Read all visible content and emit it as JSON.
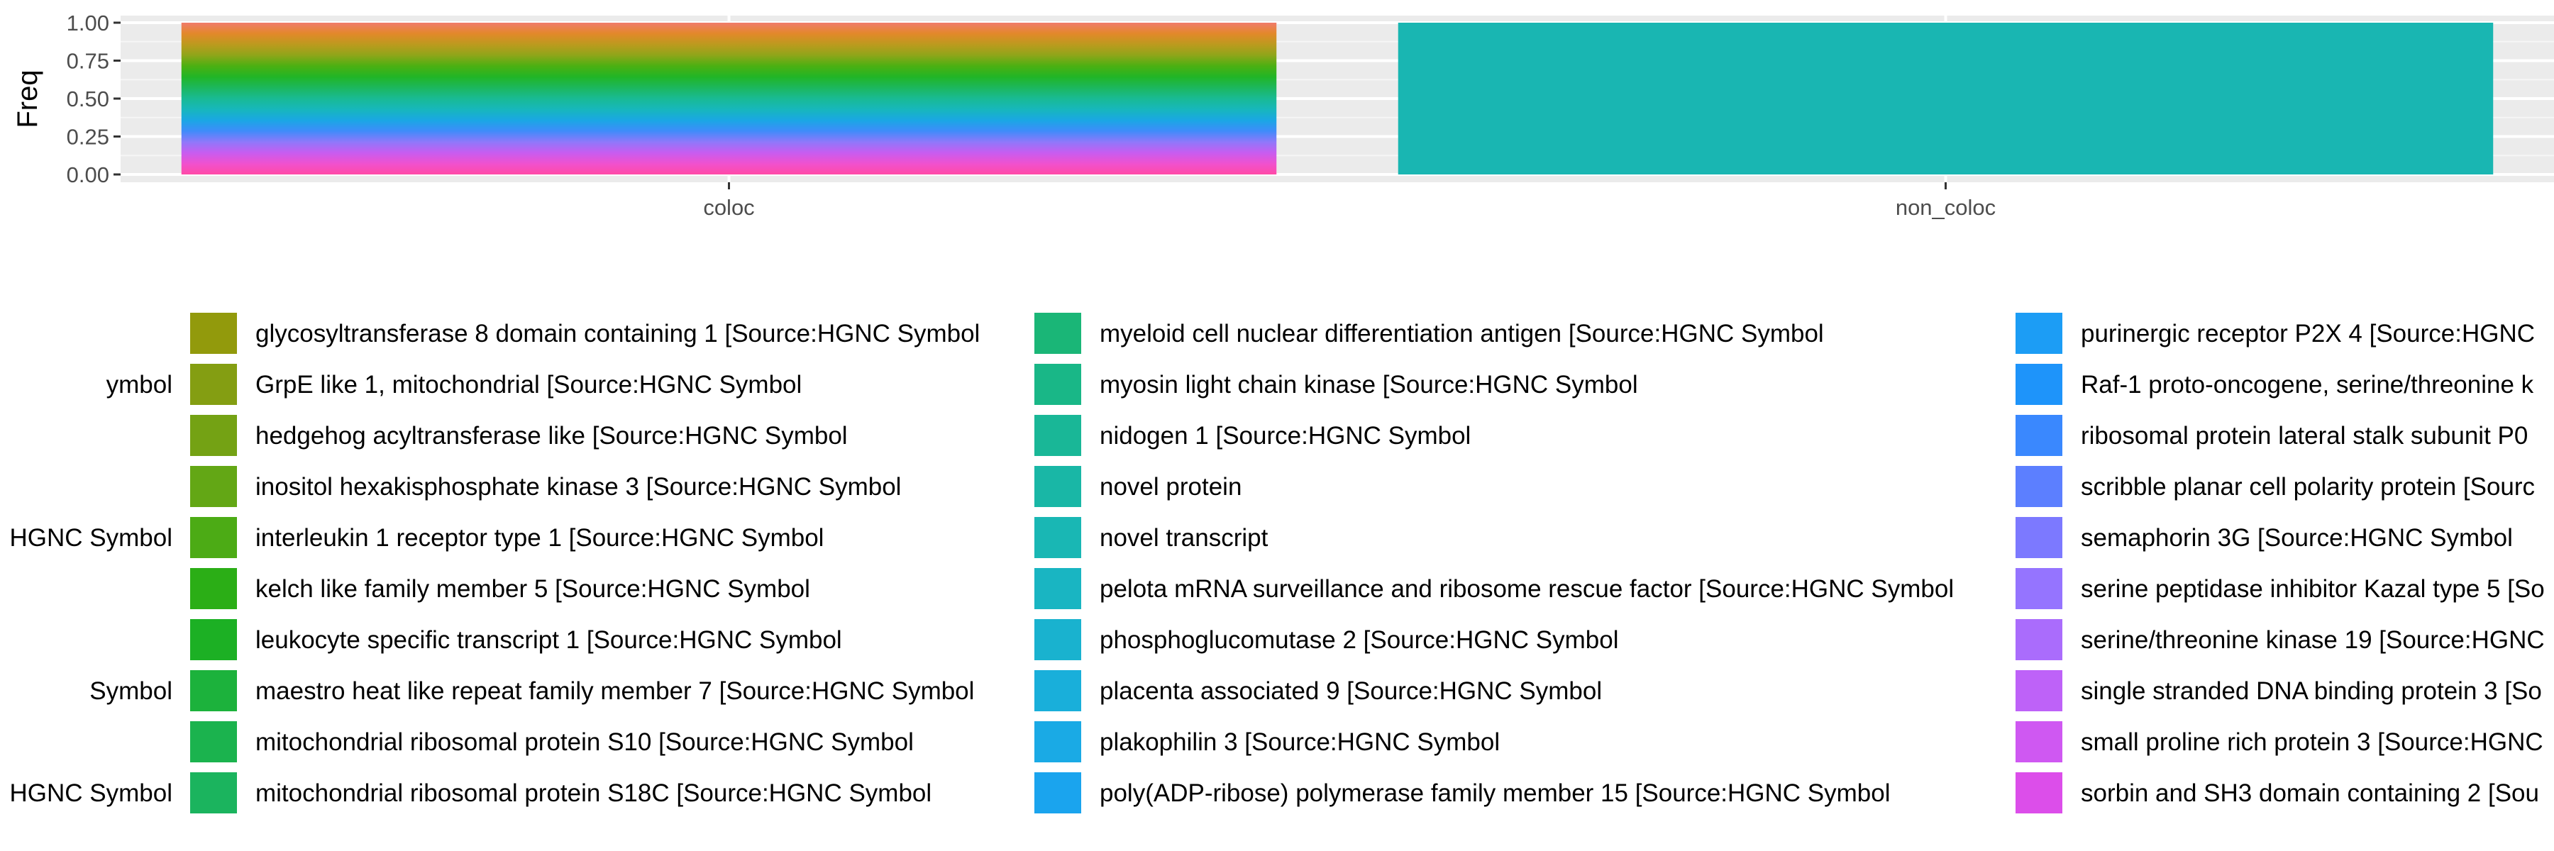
{
  "chart_data": {
    "type": "bar",
    "stacked": true,
    "position": "fill",
    "ylabel": "Freq",
    "xlabel": "",
    "ylim": [
      0,
      1
    ],
    "y_ticks": [
      "0.00",
      "0.25",
      "0.50",
      "0.75",
      "1.00"
    ],
    "categories": [
      "coloc",
      "non_coloc"
    ],
    "grid": true,
    "legend_position": "bottom",
    "non_coloc_fill": "#19B6B2",
    "coloc_gradient_top_to_bottom": [
      "#F07B6B",
      "#E3882A",
      "#BC9A1E",
      "#8FA51A",
      "#4BB012",
      "#21B526",
      "#1CB75E",
      "#19BA94",
      "#17B7BC",
      "#1AA7E4",
      "#3F8CFA",
      "#8F78FA",
      "#C75DF0",
      "#F051CE",
      "#FF4AA6"
    ],
    "legend_columns": [
      {
        "items": [
          {
            "label": "ymbol",
            "color": ""
          },
          {
            "label": "",
            "color": ""
          },
          {
            "label": "",
            "color": ""
          },
          {
            "label": "HGNC Symbol",
            "color": ""
          },
          {
            "label": "",
            "color": ""
          },
          {
            "label": "",
            "color": ""
          },
          {
            "label": "Symbol",
            "color": ""
          },
          {
            "label": "",
            "color": ""
          },
          {
            "label": "HGNC Symbol",
            "color": ""
          }
        ]
      },
      {
        "items": [
          {
            "label": "glycosyltransferase 8 domain containing 1 [Source:HGNC Symbol",
            "color": "#929A0C"
          },
          {
            "label": "GrpE like 1, mitochondrial [Source:HGNC Symbol",
            "color": "#849E12"
          },
          {
            "label": "hedgehog acyltransferase like [Source:HGNC Symbol",
            "color": "#74A214"
          },
          {
            "label": "inositol hexakisphosphate kinase 3 [Source:HGNC Symbol",
            "color": "#63A715"
          },
          {
            "label": "interleukin 1 receptor type 1 [Source:HGNC Symbol",
            "color": "#4CAB15"
          },
          {
            "label": "kelch like family member 5 [Source:HGNC Symbol",
            "color": "#2BAE16"
          },
          {
            "label": "leukocyte specific transcript 1 [Source:HGNC Symbol",
            "color": "#1CB024"
          },
          {
            "label": "maestro heat like repeat family member 7 [Source:HGNC Symbol",
            "color": "#1CB23C"
          },
          {
            "label": "mitochondrial ribosomal protein S10 [Source:HGNC Symbol",
            "color": "#1BB34E"
          },
          {
            "label": "mitochondrial ribosomal protein S18C [Source:HGNC Symbol",
            "color": "#1BB45E"
          }
        ]
      },
      {
        "items": [
          {
            "label": "myeloid cell nuclear differentiation antigen [Source:HGNC Symbol",
            "color": "#1AB677"
          },
          {
            "label": "myosin light chain kinase [Source:HGNC Symbol",
            "color": "#19B787"
          },
          {
            "label": "nidogen 1 [Source:HGNC Symbol",
            "color": "#19B797"
          },
          {
            "label": "novel protein",
            "color": "#19B7A6"
          },
          {
            "label": "novel transcript",
            "color": "#19B7B4"
          },
          {
            "label": "pelota mRNA surveillance and ribosome rescue factor [Source:HGNC Symbol",
            "color": "#19B5C2"
          },
          {
            "label": "phosphoglucomutase 2 [Source:HGNC Symbol",
            "color": "#19B2CF"
          },
          {
            "label": "placenta associated 9 [Source:HGNC Symbol",
            "color": "#19AFDA"
          },
          {
            "label": "plakophilin 3 [Source:HGNC Symbol",
            "color": "#1AAAE5"
          },
          {
            "label": "poly(ADP-ribose) polymerase family member 15 [Source:HGNC Symbol",
            "color": "#1AA4EE"
          }
        ]
      },
      {
        "items": [
          {
            "label": "purinergic receptor P2X 4 [Source:HGNC",
            "color": "#1C9DF5"
          },
          {
            "label": "Raf-1 proto-oncogene, serine/threonine k",
            "color": "#1E94FA"
          },
          {
            "label": "ribosomal protein lateral stalk subunit P0",
            "color": "#3A88FE"
          },
          {
            "label": "scribble planar cell polarity protein [Sourc",
            "color": "#5C7FFF"
          },
          {
            "label": "semaphorin 3G [Source:HGNC Symbol",
            "color": "#7C79FF"
          },
          {
            "label": "serine peptidase inhibitor Kazal type 5 [So",
            "color": "#9574FF"
          },
          {
            "label": "serine/threonine kinase 19 [Source:HGNC",
            "color": "#AA6CFC"
          },
          {
            "label": "single stranded DNA binding protein 3 [So",
            "color": "#BE62F8"
          },
          {
            "label": "small proline rich protein 3 [Source:HGNC",
            "color": "#CF58F2"
          },
          {
            "label": "sorbin and SH3 domain containing 2 [Sou",
            "color": "#DC4EEA"
          }
        ]
      }
    ]
  }
}
